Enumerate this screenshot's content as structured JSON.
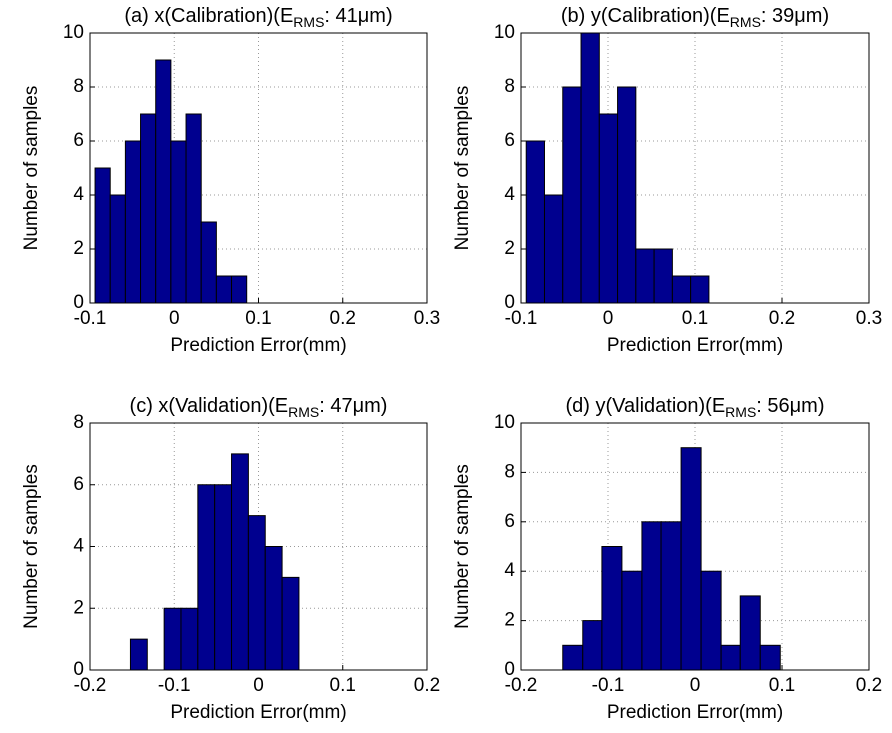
{
  "chart_data": [
    {
      "type": "histogram",
      "title": {
        "main": "(a) x(Calibration)(E",
        "sub": "RMS",
        "rest": ": 41μm)"
      },
      "xlabel": "Prediction Error(mm)",
      "ylabel": "Number of samples",
      "bins": [
        -0.094,
        -0.076,
        -0.058,
        -0.04,
        -0.022,
        -0.004,
        0.014,
        0.032,
        0.05,
        0.068,
        0.086
      ],
      "values": [
        5,
        4,
        6,
        7,
        9,
        6,
        7,
        3,
        1,
        1
      ],
      "color": "#00008f",
      "xlim": [
        -0.1,
        0.3
      ],
      "xticks": [
        -0.1,
        0,
        0.1,
        0.2,
        0.3
      ],
      "ylim": [
        0,
        10
      ],
      "yticks": [
        0,
        2,
        4,
        6,
        8,
        10
      ],
      "grid": true
    },
    {
      "type": "histogram",
      "title": {
        "main": "(b) y(Calibration)(E",
        "sub": "RMS",
        "rest": ": 39μm)"
      },
      "xlabel": "Prediction Error(mm)",
      "ylabel": "Number of samples",
      "bins": [
        -0.094,
        -0.073,
        -0.052,
        -0.031,
        -0.01,
        0.011,
        0.032,
        0.053,
        0.074,
        0.095,
        0.116
      ],
      "values": [
        6,
        4,
        8,
        10,
        7,
        8,
        2,
        2,
        1,
        1
      ],
      "color": "#00008f",
      "xlim": [
        -0.1,
        0.3
      ],
      "xticks": [
        -0.1,
        0,
        0.1,
        0.2,
        0.3
      ],
      "ylim": [
        0,
        10
      ],
      "yticks": [
        0,
        2,
        4,
        6,
        8,
        10
      ],
      "grid": true
    },
    {
      "type": "histogram",
      "title": {
        "main": "(c) x(Validation)(E",
        "sub": "RMS",
        "rest": ": 47μm)"
      },
      "xlabel": "Prediction Error(mm)",
      "ylabel": "Number of samples",
      "bins": [
        -0.152,
        -0.132,
        -0.112,
        -0.092,
        -0.072,
        -0.052,
        -0.032,
        -0.012,
        0.008,
        0.028,
        0.048
      ],
      "values": [
        1,
        0,
        2,
        2,
        6,
        6,
        7,
        5,
        4,
        3
      ],
      "color": "#00008f",
      "xlim": [
        -0.2,
        0.2
      ],
      "xticks": [
        -0.2,
        -0.1,
        0,
        0.1,
        0.2
      ],
      "ylim": [
        0,
        8
      ],
      "yticks": [
        0,
        2,
        4,
        6,
        8
      ],
      "grid": true
    },
    {
      "type": "histogram",
      "title": {
        "main": "(d) y(Validation)(E",
        "sub": "RMS",
        "rest": ": 56μm)"
      },
      "xlabel": "Prediction Error(mm)",
      "ylabel": "Number of samples",
      "bins": [
        -0.152,
        -0.129,
        -0.107,
        -0.084,
        -0.061,
        -0.039,
        -0.016,
        0.007,
        0.03,
        0.052,
        0.075,
        0.098
      ],
      "values": [
        1,
        2,
        5,
        4,
        6,
        6,
        9,
        4,
        1,
        3,
        1
      ],
      "color": "#00008f",
      "xlim": [
        -0.2,
        0.2
      ],
      "xticks": [
        -0.2,
        -0.1,
        0,
        0.1,
        0.2
      ],
      "ylim": [
        0,
        10
      ],
      "yticks": [
        0,
        2,
        4,
        6,
        8,
        10
      ],
      "grid": true
    }
  ]
}
